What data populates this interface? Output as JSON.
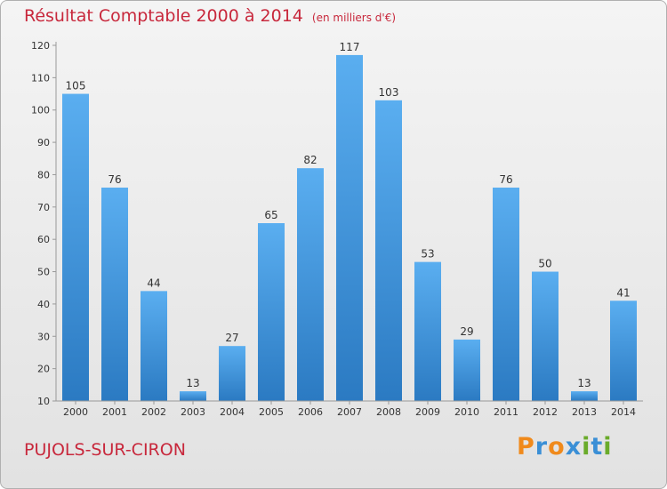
{
  "title": "Résultat Comptable 2000 à 2014",
  "subtitle": "(en milliers d'€)",
  "location": "PUJOLS-SUR-CIRON",
  "logo": {
    "text": "Proxiti",
    "letters": [
      "P",
      "r",
      "o",
      "x",
      "i",
      "t",
      "i"
    ],
    "colors": [
      "#f08a1c",
      "#3a8fd6",
      "#f08a1c",
      "#3a8fd6",
      "#6aab2a",
      "#3a8fd6",
      "#6aab2a"
    ]
  },
  "chart_data": {
    "type": "bar",
    "categories": [
      "2000",
      "2001",
      "2002",
      "2003",
      "2004",
      "2005",
      "2006",
      "2007",
      "2008",
      "2009",
      "2010",
      "2011",
      "2012",
      "2013",
      "2014"
    ],
    "values": [
      105,
      76,
      44,
      13,
      27,
      65,
      82,
      117,
      103,
      53,
      29,
      76,
      50,
      13,
      41
    ],
    "data_labels": [
      "105",
      "76",
      "44",
      "13",
      "27",
      "65",
      "82",
      "117",
      "103",
      "53",
      "29",
      "76",
      "50",
      "13",
      "41"
    ],
    "y_ticks": [
      10,
      20,
      30,
      40,
      50,
      60,
      70,
      80,
      90,
      100,
      110,
      120
    ],
    "ylim": [
      10,
      120
    ],
    "grid": false,
    "bar_color": "#3a8fd6"
  }
}
